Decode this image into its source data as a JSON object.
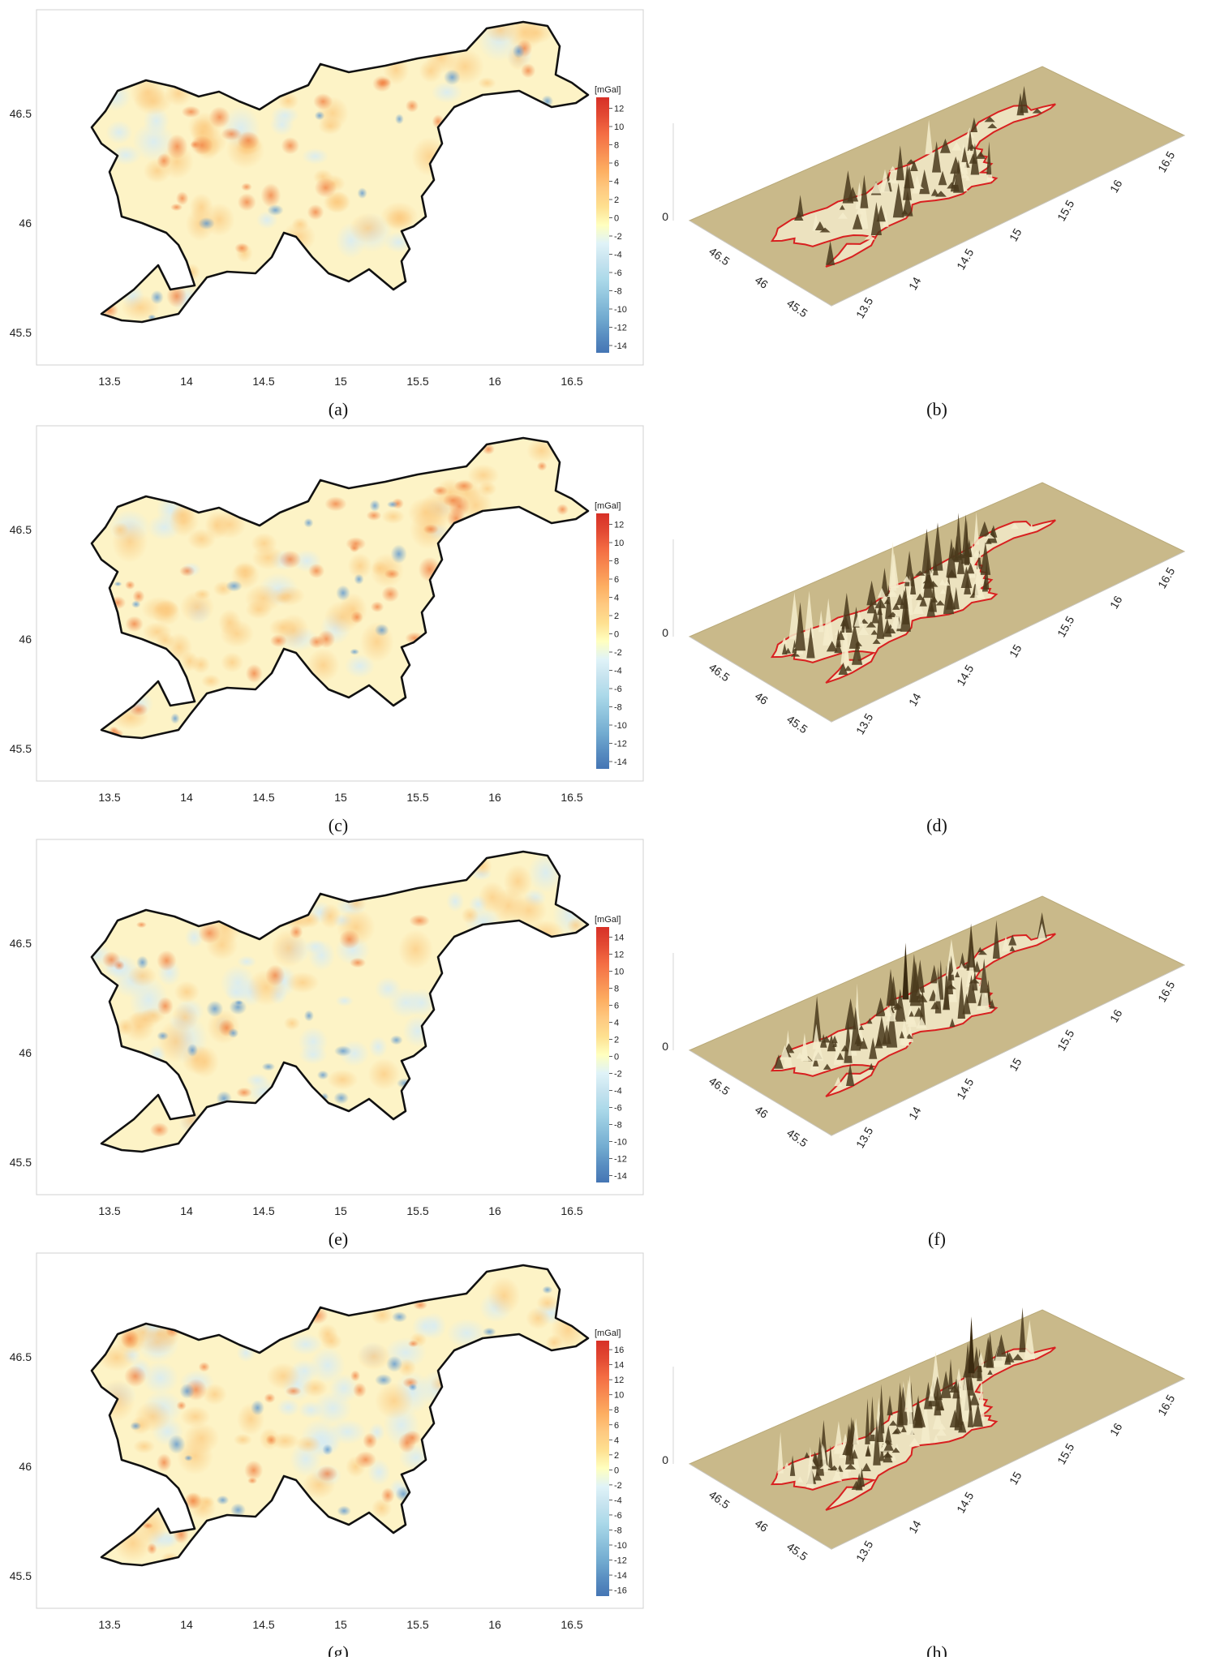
{
  "figure": {
    "panels": [
      {
        "map": {
          "caption": "(a)",
          "x_ticks": [
            "13.5",
            "14",
            "14.5",
            "15",
            "15.5",
            "16",
            "16.5"
          ],
          "y_ticks": [
            "46.5",
            "46",
            "45.5"
          ],
          "colorbar": {
            "unit": "[mGal]",
            "ticks": [
              "12",
              "10",
              "8",
              "6",
              "4",
              "2",
              "0",
              "-2",
              "-4",
              "-6",
              "-8",
              "-10",
              "-12",
              "-14"
            ]
          }
        },
        "surface": {
          "caption": "(b)",
          "z_tick": "0",
          "lat_ticks": [
            "46.5",
            "46",
            "45.5"
          ],
          "lon_ticks": [
            "13.5",
            "14",
            "14.5",
            "15",
            "15.5",
            "16",
            "16.5"
          ]
        }
      },
      {
        "map": {
          "caption": "(c)",
          "x_ticks": [
            "13.5",
            "14",
            "14.5",
            "15",
            "15.5",
            "16",
            "16.5"
          ],
          "y_ticks": [
            "46.5",
            "46",
            "45.5"
          ],
          "colorbar": {
            "unit": "[mGal]",
            "ticks": [
              "12",
              "10",
              "8",
              "6",
              "4",
              "2",
              "0",
              "-2",
              "-4",
              "-6",
              "-8",
              "-10",
              "-12",
              "-14"
            ]
          }
        },
        "surface": {
          "caption": "(d)",
          "z_tick": "0",
          "lat_ticks": [
            "46.5",
            "46",
            "45.5"
          ],
          "lon_ticks": [
            "13.5",
            "14",
            "14.5",
            "15",
            "15.5",
            "16",
            "16.5"
          ]
        }
      },
      {
        "map": {
          "caption": "(e)",
          "x_ticks": [
            "13.5",
            "14",
            "14.5",
            "15",
            "15.5",
            "16",
            "16.5"
          ],
          "y_ticks": [
            "46.5",
            "46",
            "45.5"
          ],
          "colorbar": {
            "unit": "[mGal]",
            "ticks": [
              "14",
              "12",
              "10",
              "8",
              "6",
              "4",
              "2",
              "0",
              "-2",
              "-4",
              "-6",
              "-8",
              "-10",
              "-12",
              "-14"
            ]
          }
        },
        "surface": {
          "caption": "(f)",
          "z_tick": "0",
          "lat_ticks": [
            "46.5",
            "46",
            "45.5"
          ],
          "lon_ticks": [
            "13.5",
            "14",
            "14.5",
            "15",
            "15.5",
            "16",
            "16.5"
          ]
        }
      },
      {
        "map": {
          "caption": "(g)",
          "x_ticks": [
            "13.5",
            "14",
            "14.5",
            "15",
            "15.5",
            "16",
            "16.5"
          ],
          "y_ticks": [
            "46.5",
            "46",
            "45.5"
          ],
          "colorbar": {
            "unit": "[mGal]",
            "ticks": [
              "16",
              "14",
              "12",
              "10",
              "8",
              "6",
              "4",
              "2",
              "0",
              "-2",
              "-4",
              "-6",
              "-8",
              "-10",
              "-12",
              "-14",
              "-16"
            ]
          }
        },
        "surface": {
          "caption": "(h)",
          "z_tick": "0",
          "lat_ticks": [
            "46.5",
            "46",
            "45.5"
          ],
          "lon_ticks": [
            "13.5",
            "14",
            "14.5",
            "15",
            "15.5",
            "16",
            "16.5"
          ]
        }
      }
    ],
    "colors": {
      "map_fill": "#fdf3c6",
      "outline": "#111111",
      "surface_plane": "#c9b98a",
      "surface_outline": "#d82020",
      "peaks_dark": "#4a3a1c",
      "peaks_light": "#f4eccb",
      "scale_max": "#d73027",
      "scale_zero": "#ffffbf",
      "scale_min": "#4575b4"
    }
  }
}
